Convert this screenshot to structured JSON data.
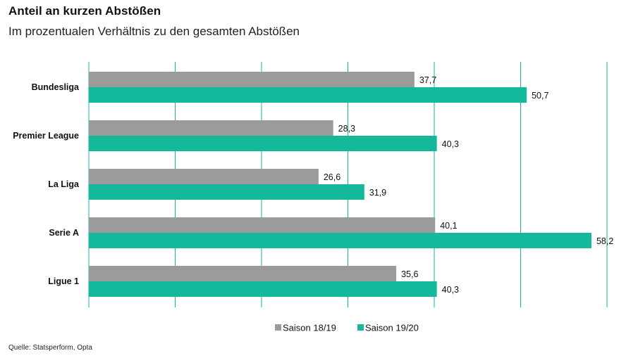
{
  "title": "Anteil an kurzen Abstößen",
  "subtitle": "Im prozentualen Verhältnis zu den gesamten Abstößen",
  "source": "Quelle: Statsperform, Opta",
  "colors": {
    "saison_18_19": "#9b9b9b",
    "saison_19_20": "#14b89a",
    "grid": "#14b89a"
  },
  "chart_data": {
    "type": "bar",
    "orientation": "horizontal",
    "title": "Anteil an kurzen Abstößen",
    "subtitle": "Im prozentualen Verhältnis zu den gesamten Abstößen",
    "categories": [
      "Bundesliga",
      "Premier League",
      "La Liga",
      "Serie A",
      "Ligue 1"
    ],
    "series": [
      {
        "name": "Saison 18/19",
        "values": [
          37.7,
          28.3,
          26.6,
          40.1,
          35.6
        ],
        "labels": [
          "37,7",
          "28,3",
          "26,6",
          "40,1",
          "35,6"
        ]
      },
      {
        "name": "Saison 19/20",
        "values": [
          50.7,
          40.3,
          31.9,
          58.2,
          40.3
        ],
        "labels": [
          "50,7",
          "40,3",
          "31,9",
          "58,2",
          "40,3"
        ]
      }
    ],
    "xlim": [
      0,
      60
    ],
    "x_gridlines": [
      0,
      10,
      20,
      30,
      40,
      50,
      60
    ],
    "grid": true,
    "axis_tick_labels": false,
    "legend_position": "bottom-center"
  }
}
